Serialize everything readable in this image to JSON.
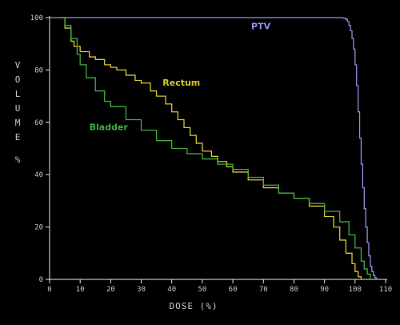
{
  "chart_data": {
    "type": "line",
    "title": "",
    "xlabel": "DOSE (%)",
    "ylabel": "VOLUME %",
    "xlim": [
      0,
      110
    ],
    "ylim": [
      0,
      100
    ],
    "xticks": [
      "0",
      "10",
      "20",
      "30",
      "40",
      "50",
      "60",
      "70",
      "80",
      "90",
      "100",
      "110"
    ],
    "yticks": [
      "0",
      "20",
      "40",
      "60",
      "80",
      "100"
    ],
    "grid": false,
    "series": [
      {
        "name": "PTV",
        "color": "#8f8fe6",
        "x": [
          0,
          90,
          94,
          96,
          97,
          97.5,
          98,
          98.5,
          99,
          99.5,
          100,
          100.5,
          101,
          101.5,
          102,
          102.5,
          103,
          103.5,
          104,
          104.5,
          105,
          105.5,
          106,
          106.5,
          107
        ],
        "y": [
          100,
          100,
          100,
          99.8,
          99.3,
          98.5,
          97,
          95,
          92,
          88,
          82,
          74,
          64,
          54,
          44,
          35,
          27,
          20,
          14,
          9,
          5,
          3,
          1.5,
          0.6,
          0
        ]
      },
      {
        "name": "Rectum",
        "color": "#d9c832",
        "x": [
          3,
          5,
          7,
          8,
          10,
          13,
          15,
          18,
          20,
          22,
          25,
          28,
          30,
          33,
          35,
          38,
          40,
          42,
          44,
          46,
          48,
          50,
          53,
          55,
          58,
          60,
          65,
          70,
          75,
          80,
          85,
          90,
          93,
          95,
          97,
          99,
          100,
          101,
          102
        ],
        "y": [
          100,
          96,
          91,
          89,
          87,
          85,
          84,
          82,
          81,
          80,
          78,
          76,
          75,
          72,
          70,
          67,
          64,
          61,
          58,
          55,
          52,
          49,
          47,
          45,
          43,
          41,
          38,
          35,
          33,
          31,
          28,
          24,
          20,
          15,
          10,
          6,
          3,
          1,
          0
        ]
      },
      {
        "name": "Bladder",
        "color": "#3fae3f",
        "x": [
          3,
          5,
          7,
          9,
          10,
          12,
          15,
          18,
          20,
          25,
          30,
          35,
          40,
          45,
          50,
          55,
          60,
          65,
          70,
          75,
          80,
          85,
          90,
          95,
          98,
          100,
          102,
          103,
          104,
          105
        ],
        "y": [
          100,
          97,
          92,
          86,
          82,
          77,
          72,
          68,
          66,
          61,
          57,
          53,
          50,
          48,
          46,
          44,
          42,
          39,
          36,
          33,
          31,
          29,
          26,
          22,
          17,
          12,
          7,
          4,
          2,
          0
        ]
      }
    ],
    "annotations": [
      {
        "text": "PTV",
        "x": 66,
        "y": 95.5
      },
      {
        "text": "Rectum",
        "x": 37,
        "y": 74
      },
      {
        "text": "Bladder",
        "x": 13,
        "y": 57
      }
    ]
  }
}
